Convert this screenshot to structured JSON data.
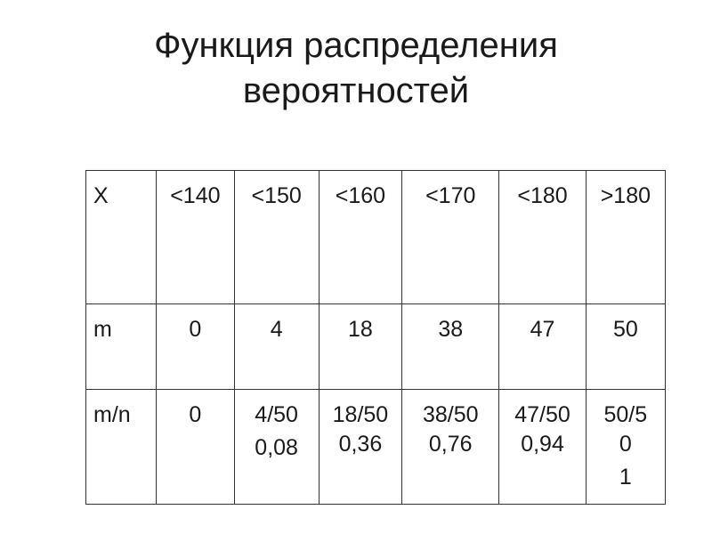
{
  "title": {
    "line1": "Функция распределения",
    "line2": "вероятностей"
  },
  "table": {
    "rows": [
      {
        "header": "X",
        "cells": [
          [
            "<140"
          ],
          [
            "<150"
          ],
          [
            "<160"
          ],
          [
            "<170"
          ],
          [
            "<180"
          ],
          [
            ">180"
          ]
        ]
      },
      {
        "header": "m",
        "cells": [
          [
            "0"
          ],
          [
            "4"
          ],
          [
            "18"
          ],
          [
            "38"
          ],
          [
            "47"
          ],
          [
            "50"
          ]
        ]
      },
      {
        "header": "m/n",
        "cells": [
          [
            "0"
          ],
          [
            "4/50",
            "0,08"
          ],
          [
            "18/50",
            "0,36"
          ],
          [
            "38/50",
            "0,76"
          ],
          [
            "47/50",
            "0,94"
          ],
          [
            "50/5",
            "0",
            "1"
          ]
        ]
      }
    ]
  }
}
